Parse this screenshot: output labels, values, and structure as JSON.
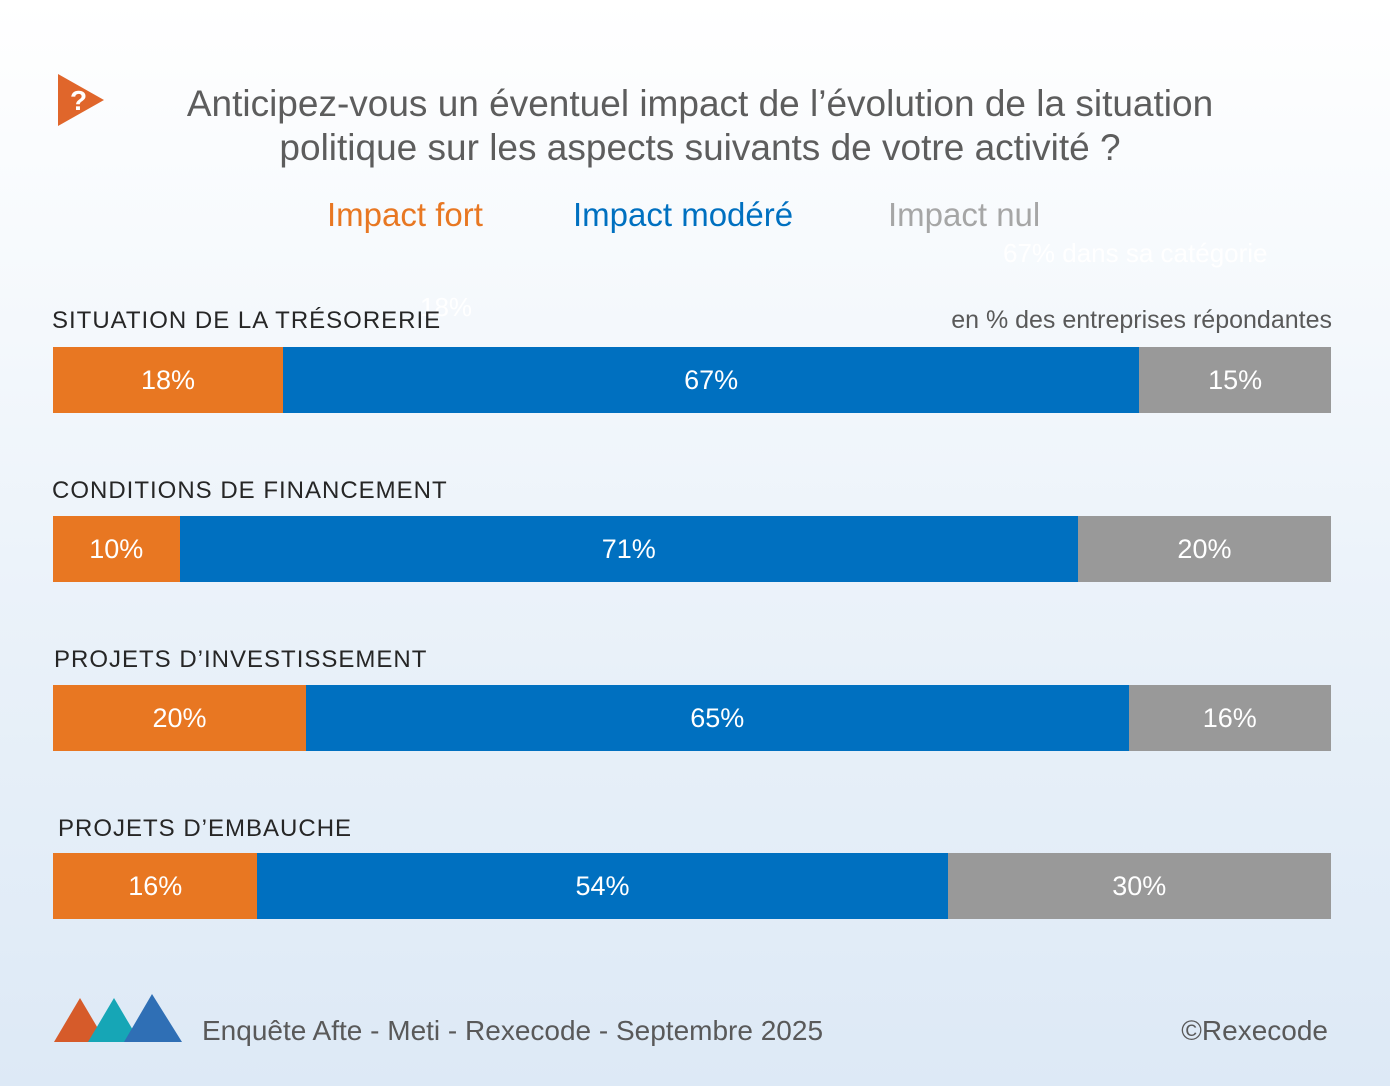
{
  "header": {
    "question_icon_glyph": "?",
    "title_line1": "Anticipez-vous un éventuel impact de l’évolution de la situation",
    "title_line2": "politique sur les aspects suivants de votre activité ?"
  },
  "colors": {
    "fort": "#e87722",
    "modere": "#0070c0",
    "nul": "#999999"
  },
  "ghost_text": {
    "tooltip": "67% dans sa catégorie",
    "value": "18%"
  },
  "chart_data": {
    "type": "bar",
    "orientation": "horizontal",
    "stacked": true,
    "unit_note": "en % des entreprises répondantes",
    "legend": [
      "Impact fort",
      "Impact modéré",
      "Impact nul"
    ],
    "categories": [
      "SITUATION DE LA TRÉSORERIE",
      "CONDITIONS DE FINANCEMENT",
      "PROJETS D’INVESTISSEMENT",
      "PROJETS D’EMBAUCHE"
    ],
    "series": [
      {
        "name": "Impact fort",
        "values": [
          18,
          10,
          20,
          16
        ],
        "labels": [
          "18%",
          "10%",
          "20%",
          "16%"
        ]
      },
      {
        "name": "Impact modéré",
        "values": [
          67,
          71,
          65,
          54
        ],
        "labels": [
          "67%",
          "71%",
          "65%",
          "54%"
        ]
      },
      {
        "name": "Impact nul",
        "values": [
          15,
          20,
          16,
          30
        ],
        "labels": [
          "15%",
          "20%",
          "16%",
          "30%"
        ]
      }
    ]
  },
  "footer": {
    "source": "Enquête Afte - Meti - Rexecode  - Septembre 2025",
    "copyright": "©Rexecode"
  }
}
